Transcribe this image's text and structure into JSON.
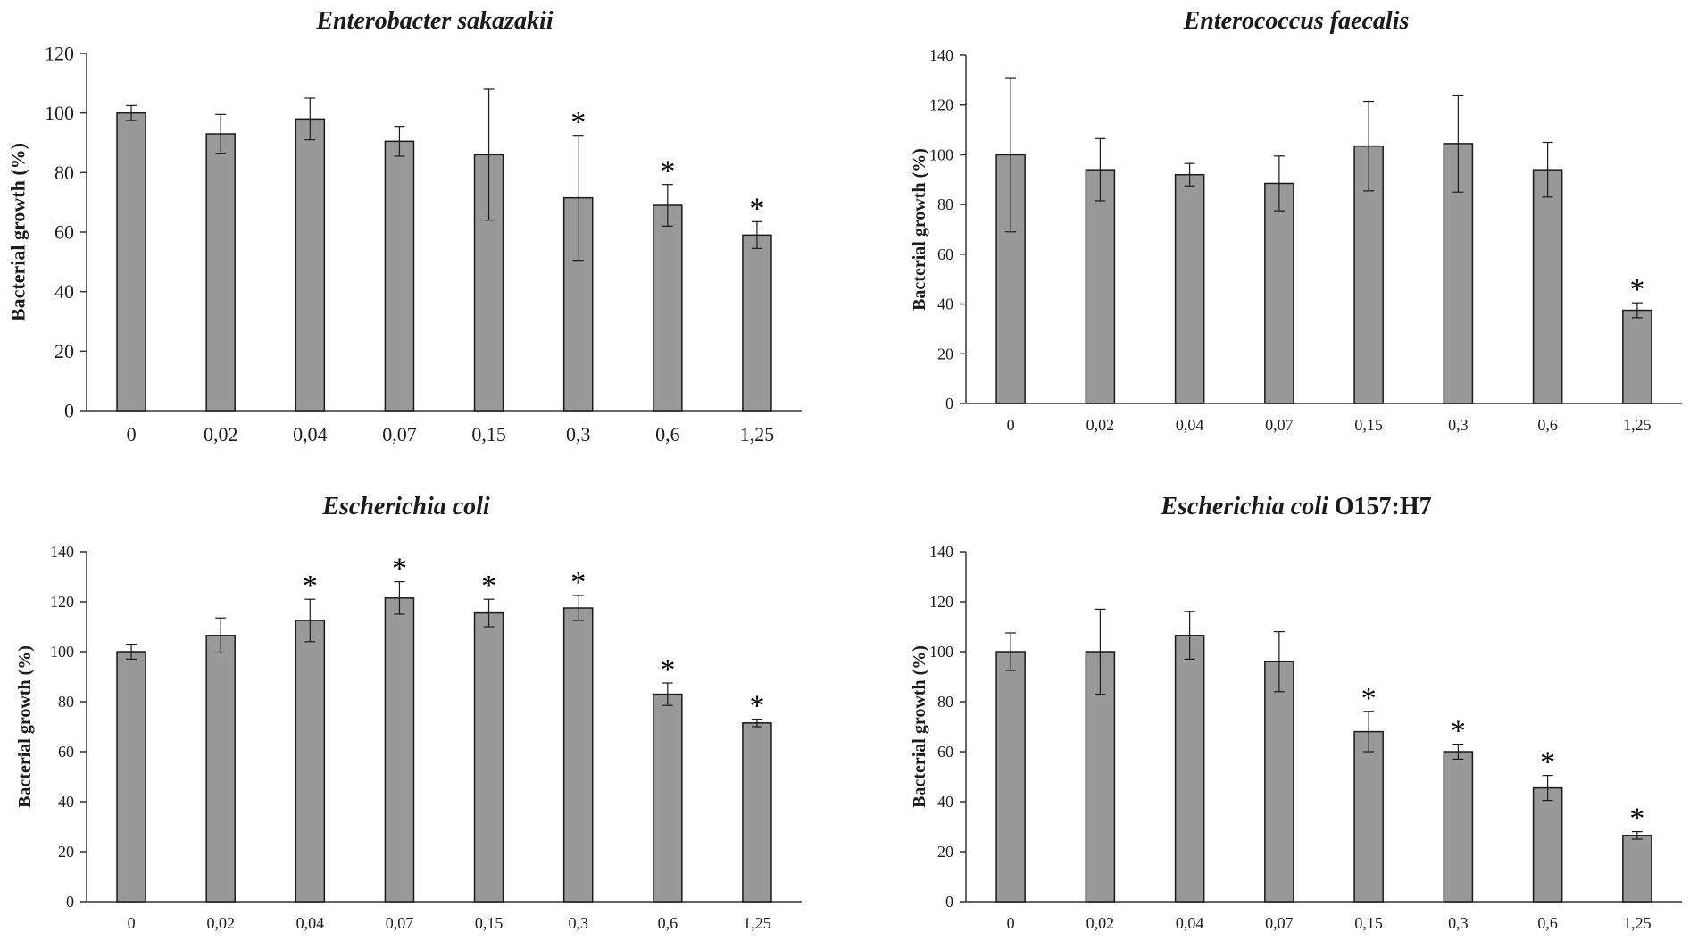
{
  "chart_data": [
    {
      "type": "bar",
      "title": "Enterobacter sakazakii",
      "title_suffix": "",
      "xlabel": "",
      "ylabel": "Bacterial growth (%)",
      "ylim": [
        0,
        120
      ],
      "yticks": [
        "0",
        "20",
        "40",
        "60",
        "80",
        "100",
        "120"
      ],
      "categories": [
        "0",
        "0,02",
        "0,04",
        "0,07",
        "0,15",
        "0,3",
        "0,6",
        "1,25"
      ],
      "values": [
        100,
        93,
        98,
        90.5,
        86,
        71.5,
        69,
        59
      ],
      "errors": [
        2.5,
        6.5,
        7,
        5,
        22,
        21,
        7,
        4.5
      ],
      "significant": [
        false,
        false,
        false,
        false,
        false,
        true,
        true,
        true
      ],
      "significance_marker": "*"
    },
    {
      "type": "bar",
      "title": "Enterococcus faecalis",
      "title_suffix": "",
      "xlabel": "",
      "ylabel": "Bacterial growth (%)",
      "ylim": [
        0,
        140
      ],
      "yticks": [
        "0",
        "20",
        "40",
        "60",
        "80",
        "100",
        "120",
        "140"
      ],
      "categories": [
        "0",
        "0,02",
        "0,04",
        "0,07",
        "0,15",
        "0,3",
        "0,6",
        "1,25"
      ],
      "values": [
        100,
        94,
        92,
        88.5,
        103.5,
        104.5,
        94,
        37.5
      ],
      "errors": [
        31,
        12.5,
        4.5,
        11,
        18,
        19.5,
        11,
        3
      ],
      "significant": [
        false,
        false,
        false,
        false,
        false,
        false,
        false,
        true
      ],
      "significance_marker": "*"
    },
    {
      "type": "bar",
      "title": "Escherichia coli",
      "title_suffix": "",
      "xlabel": "",
      "ylabel": "Bacterial growth (%)",
      "ylim": [
        0,
        140
      ],
      "yticks": [
        "0",
        "20",
        "40",
        "60",
        "80",
        "100",
        "120",
        "140"
      ],
      "categories": [
        "0",
        "0,02",
        "0,04",
        "0,07",
        "0,15",
        "0,3",
        "0,6",
        "1,25"
      ],
      "values": [
        100,
        106.5,
        112.5,
        121.5,
        115.5,
        117.5,
        83,
        71.5
      ],
      "errors": [
        3,
        7,
        8.5,
        6.5,
        5.5,
        5,
        4.5,
        1.5
      ],
      "significant": [
        false,
        false,
        true,
        true,
        true,
        true,
        true,
        true
      ],
      "significance_marker": "*"
    },
    {
      "type": "bar",
      "title": "Escherichia coli",
      "title_suffix": " O157:H7",
      "xlabel": "",
      "ylabel": "Bacterial growth (%)",
      "ylim": [
        0,
        140
      ],
      "yticks": [
        "0",
        "20",
        "40",
        "60",
        "80",
        "100",
        "120",
        "140"
      ],
      "categories": [
        "0",
        "0,02",
        "0,04",
        "0,07",
        "0,15",
        "0,3",
        "0,6",
        "1,25"
      ],
      "values": [
        100,
        100,
        106.5,
        96,
        68,
        60,
        45.5,
        26.5
      ],
      "errors": [
        7.5,
        17,
        9.5,
        12,
        8,
        3,
        5,
        1.5
      ],
      "significant": [
        false,
        false,
        false,
        false,
        true,
        true,
        true,
        true
      ],
      "significance_marker": "*"
    }
  ],
  "colors": {
    "bar_fill": "#999999",
    "bar_stroke": "#1a1a1a",
    "axis": "#333333",
    "text": "#1a1a1a"
  }
}
